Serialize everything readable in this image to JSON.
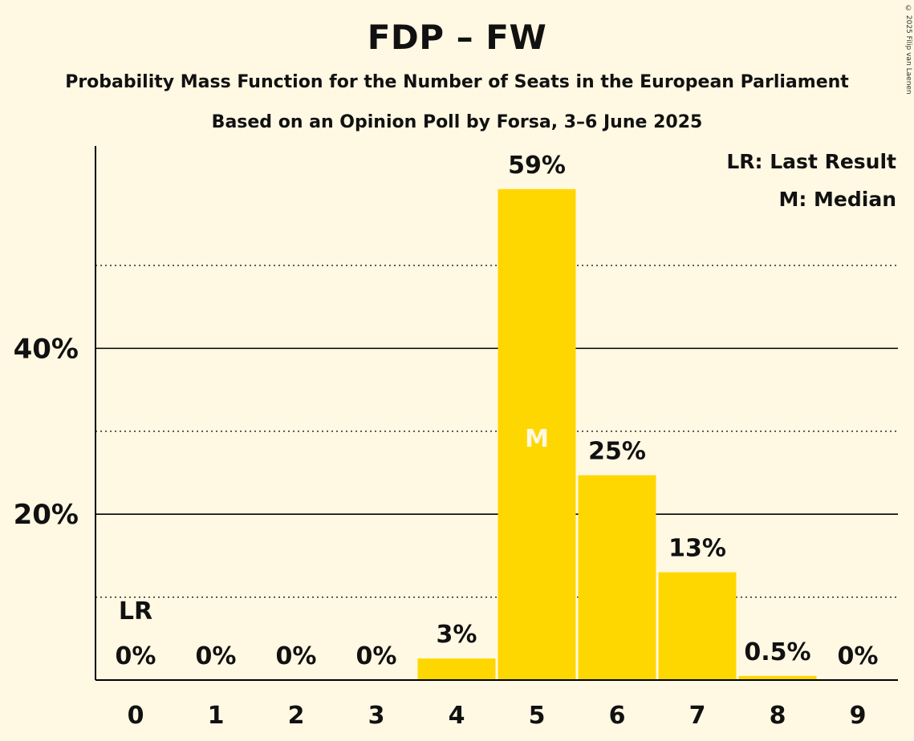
{
  "chart_data": {
    "type": "bar",
    "title": "FDP – FW",
    "subtitle": "Probability Mass Function for the Number of Seats in the European Parliament",
    "subtitle2": "Based on an Opinion Poll by Forsa, 3–6 June 2025",
    "copyright": "© 2025 Filip van Laenen",
    "categories": [
      "0",
      "1",
      "2",
      "3",
      "4",
      "5",
      "6",
      "7",
      "8",
      "9"
    ],
    "values": [
      0,
      0,
      0,
      0,
      2.6,
      59.2,
      24.7,
      13.0,
      0.5,
      0
    ],
    "value_labels": [
      "0%",
      "0%",
      "0%",
      "0%",
      "3%",
      "59%",
      "25%",
      "13%",
      "0.5%",
      "0%"
    ],
    "ylim": [
      0,
      64.6
    ],
    "yticks": [
      20,
      40
    ],
    "ytick_labels": [
      "20%",
      "40%"
    ],
    "minor_gridlines": [
      10,
      30,
      50
    ],
    "last_result_index": 0,
    "last_result_marker": "LR",
    "median_index": 5,
    "median_marker": "M",
    "legend": [
      "LR: Last Result",
      "M: Median"
    ],
    "legend_position": "top-right",
    "colors": {
      "bar": "#FFD700",
      "background": "#FFF8E3",
      "axis": "#000000",
      "median_text": "#FFF8E3"
    }
  }
}
